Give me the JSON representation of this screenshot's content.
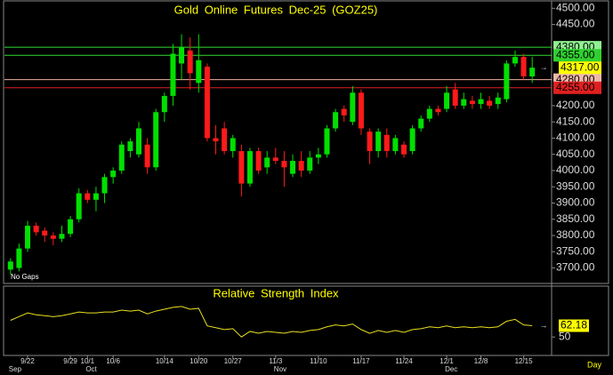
{
  "chart_data": [
    {
      "type": "candlestick",
      "title": "Gold Online Futures Dec-25 (GOZ25)",
      "note": "No Gaps",
      "categories": [
        null,
        null,
        "9/22",
        null,
        null,
        null,
        null,
        "9/29",
        null,
        "10/1",
        null,
        null,
        "10/6",
        null,
        null,
        null,
        null,
        null,
        "10/14",
        null,
        null,
        null,
        "10/20",
        null,
        null,
        null,
        "10/27",
        null,
        null,
        null,
        null,
        "11/3",
        null,
        null,
        null,
        null,
        "11/10",
        null,
        null,
        null,
        null,
        "11/17",
        null,
        null,
        null,
        null,
        "11/24",
        null,
        null,
        null,
        null,
        "12/1",
        null,
        null,
        null,
        "12/8",
        null,
        null,
        null,
        null,
        "12/15",
        null
      ],
      "months": [
        "Sep",
        null,
        null,
        null,
        null,
        null,
        null,
        null,
        null,
        "Oct",
        null,
        null,
        null,
        null,
        null,
        null,
        null,
        null,
        null,
        null,
        null,
        null,
        null,
        null,
        null,
        null,
        null,
        null,
        null,
        null,
        null,
        "Nov",
        null,
        null,
        null,
        null,
        null,
        null,
        null,
        null,
        null,
        null,
        null,
        null,
        null,
        null,
        null,
        null,
        null,
        null,
        null,
        "Dec",
        null,
        null,
        null,
        null,
        null,
        null,
        null,
        null,
        null,
        null
      ],
      "x_unit": "Day",
      "series": [
        {
          "up_color": "#00e000",
          "down_color": "#ff1a1a",
          "open": [
            3695,
            3700,
            3760,
            3830,
            3815,
            3800,
            3790,
            3805,
            3850,
            3930,
            3910,
            3930,
            3980,
            4000,
            4060,
            4050,
            4080,
            4010,
            4180,
            4230,
            4330,
            4370,
            4270,
            4320,
            4100,
            4130,
            4060,
            4060,
            3960,
            4060,
            4010,
            4040,
            4030,
            3990,
            4030,
            4000,
            4040,
            4050,
            4130,
            4190,
            4150,
            4240,
            4120,
            4060,
            4110,
            4060,
            4080,
            4060,
            4130,
            4160,
            4190,
            4190,
            4250,
            4200,
            4215,
            4205,
            4215,
            4205,
            4220,
            4330,
            4350,
            4290
          ],
          "high": [
            3730,
            3775,
            3845,
            3840,
            3825,
            3810,
            3830,
            3860,
            3945,
            3940,
            3950,
            3990,
            4010,
            4090,
            4100,
            4150,
            4100,
            4190,
            4240,
            4390,
            4420,
            4410,
            4420,
            4330,
            4140,
            4150,
            4110,
            4080,
            4070,
            4070,
            4060,
            4070,
            4060,
            4050,
            4060,
            4060,
            4070,
            4140,
            4190,
            4200,
            4260,
            4250,
            4130,
            4130,
            4130,
            4110,
            4090,
            4140,
            4170,
            4200,
            4200,
            4260,
            4270,
            4240,
            4230,
            4240,
            4230,
            4240,
            4340,
            4370,
            4360,
            4350
          ],
          "low": [
            3680,
            3690,
            3750,
            3800,
            3780,
            3770,
            3780,
            3795,
            3840,
            3900,
            3875,
            3900,
            3960,
            3990,
            4040,
            4040,
            3990,
            4000,
            4150,
            4200,
            4280,
            4250,
            4240,
            4090,
            4050,
            4050,
            4040,
            3920,
            3950,
            3990,
            3990,
            4020,
            3950,
            3980,
            3980,
            3990,
            4020,
            4040,
            4120,
            4150,
            4140,
            4110,
            4020,
            4040,
            4040,
            4050,
            4040,
            4050,
            4120,
            4150,
            4170,
            4180,
            4190,
            4190,
            4190,
            4190,
            4190,
            4190,
            4210,
            4320,
            4280,
            4270
          ],
          "close": [
            3720,
            3760,
            3830,
            3810,
            3800,
            3790,
            3805,
            3850,
            3930,
            3910,
            3930,
            3980,
            4000,
            4080,
            4090,
            4130,
            4010,
            4180,
            4230,
            4360,
            4380,
            4300,
            4340,
            4100,
            4090,
            4060,
            4100,
            3960,
            4060,
            4000,
            4040,
            4030,
            4010,
            4030,
            4000,
            4040,
            4050,
            4130,
            4180,
            4170,
            4240,
            4130,
            4060,
            4120,
            4060,
            4100,
            4050,
            4130,
            4160,
            4190,
            4180,
            4240,
            4200,
            4220,
            4205,
            4220,
            4200,
            4225,
            4330,
            4350,
            4290,
            4317
          ]
        }
      ],
      "levels": [
        {
          "value": 4380,
          "label": "4380.00",
          "color": "#33dd33",
          "box": "#90f090"
        },
        {
          "value": 4355,
          "label": "4355.00",
          "color": "#33dd33",
          "box": "#30d030"
        },
        {
          "value": 4280,
          "label": "4280.00",
          "color": "#f0b0a0",
          "box": "#f0b8a8"
        },
        {
          "value": 4255,
          "label": "4255.00",
          "color": "#e02020",
          "box": "#e02020"
        }
      ],
      "last": {
        "value": 4317,
        "label": "4317.00",
        "box": "#ffff00"
      },
      "ylim": [
        3655,
        4520
      ],
      "yticks": [
        {
          "value": 4500,
          "label": "4500.00"
        },
        {
          "value": 4450,
          "label": "4450.00"
        },
        {
          "value": 4200,
          "label": "4200.00"
        },
        {
          "value": 4150,
          "label": "4150.00"
        },
        {
          "value": 4100,
          "label": "4100.00"
        },
        {
          "value": 4050,
          "label": "4050.00"
        },
        {
          "value": 4000,
          "label": "4000.00"
        },
        {
          "value": 3950,
          "label": "3950.00"
        },
        {
          "value": 3900,
          "label": "3900.00"
        },
        {
          "value": 3850,
          "label": "3850.00"
        },
        {
          "value": 3800,
          "label": "3800.00"
        },
        {
          "value": 3750,
          "label": "3750.00"
        },
        {
          "value": 3700,
          "label": "3700.00"
        }
      ]
    },
    {
      "type": "line",
      "title": "Relative Strength Index",
      "color": "#e8e020",
      "values": [
        68,
        72,
        76,
        74,
        73,
        72,
        73,
        75,
        77,
        76,
        76,
        77,
        77,
        79,
        78,
        79,
        75,
        78,
        80,
        82,
        83,
        80,
        81,
        62,
        60,
        58,
        59,
        50,
        56,
        54,
        56,
        55,
        54,
        56,
        55,
        57,
        58,
        61,
        63,
        62,
        64,
        58,
        54,
        57,
        55,
        57,
        55,
        58,
        59,
        61,
        60,
        62,
        60,
        61,
        60,
        61,
        60,
        61,
        67,
        69,
        63,
        62.18
      ],
      "last": {
        "value": 62.18,
        "label": "62.18",
        "box": "#ffff00"
      },
      "ylim": [
        30,
        105
      ],
      "yticks": [
        50
      ]
    }
  ]
}
